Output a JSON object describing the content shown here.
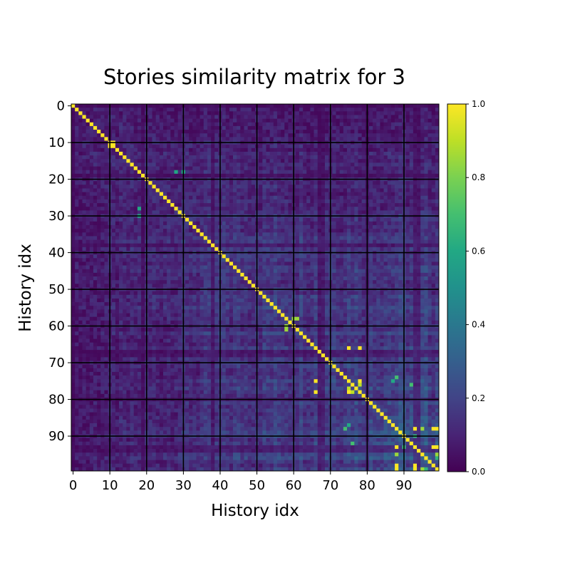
{
  "chart_data": {
    "type": "heatmap",
    "title": "Stories similarity matrix for 3",
    "xlabel": "History idx",
    "ylabel": "History idx",
    "size": 100,
    "x_ticks": [
      0,
      10,
      20,
      30,
      40,
      50,
      60,
      70,
      80,
      90
    ],
    "y_ticks": [
      0,
      10,
      20,
      30,
      40,
      50,
      60,
      70,
      80,
      90
    ],
    "x_tick_labels": [
      "0",
      "10",
      "20",
      "30",
      "40",
      "50",
      "60",
      "70",
      "80",
      "90"
    ],
    "y_tick_labels": [
      "0",
      "10",
      "20",
      "30",
      "40",
      "50",
      "60",
      "70",
      "80",
      "90"
    ],
    "colorscale": "viridis",
    "vmin": 0.0,
    "vmax": 1.0,
    "colorbar_ticks": [
      0.0,
      0.2,
      0.4,
      0.6,
      0.8,
      1.0
    ],
    "colorbar_tick_labels": [
      "0.0",
      "0.2",
      "0.4",
      "0.6",
      "0.8",
      "1.0"
    ],
    "grid": true,
    "grid_color": "#000000",
    "diagonal_value": 1.0,
    "value_range_note": "off-diagonal similarities mostly between 0.05 and 0.45",
    "high_value_cells": [
      [
        10,
        11,
        1.0
      ],
      [
        11,
        10,
        1.0
      ],
      [
        18,
        30,
        0.6
      ],
      [
        30,
        18,
        0.6
      ],
      [
        28,
        18,
        0.6
      ],
      [
        18,
        28,
        0.6
      ],
      [
        60,
        58,
        0.85
      ],
      [
        58,
        60,
        0.85
      ],
      [
        61,
        58,
        0.85
      ],
      [
        58,
        61,
        0.85
      ],
      [
        66,
        75,
        1.0
      ],
      [
        75,
        66,
        1.0
      ],
      [
        66,
        78,
        1.0
      ],
      [
        78,
        66,
        1.0
      ],
      [
        75,
        66,
        1.0
      ],
      [
        78,
        66,
        1.0
      ],
      [
        75,
        78,
        1.0
      ],
      [
        78,
        75,
        1.0
      ],
      [
        76,
        78,
        0.9
      ],
      [
        78,
        76,
        0.9
      ],
      [
        77,
        75,
        0.9
      ],
      [
        88,
        93,
        1.0
      ],
      [
        93,
        88,
        1.0
      ],
      [
        88,
        99,
        1.0
      ],
      [
        99,
        88,
        1.0
      ],
      [
        93,
        99,
        1.0
      ],
      [
        99,
        93,
        1.0
      ],
      [
        98,
        88,
        1.0
      ],
      [
        88,
        98,
        1.0
      ],
      [
        98,
        93,
        1.0
      ],
      [
        93,
        98,
        1.0
      ],
      [
        95,
        88,
        0.85
      ],
      [
        88,
        95,
        0.85
      ],
      [
        95,
        99,
        0.85
      ],
      [
        99,
        95,
        0.85
      ],
      [
        87,
        75,
        0.6
      ],
      [
        75,
        87,
        0.6
      ],
      [
        92,
        76,
        0.7
      ],
      [
        76,
        92,
        0.7
      ],
      [
        74,
        88,
        0.7
      ],
      [
        88,
        74,
        0.7
      ],
      [
        90,
        93,
        0.65
      ],
      [
        93,
        90,
        0.65
      ],
      [
        96,
        99,
        0.65
      ],
      [
        99,
        96,
        0.65
      ]
    ]
  }
}
